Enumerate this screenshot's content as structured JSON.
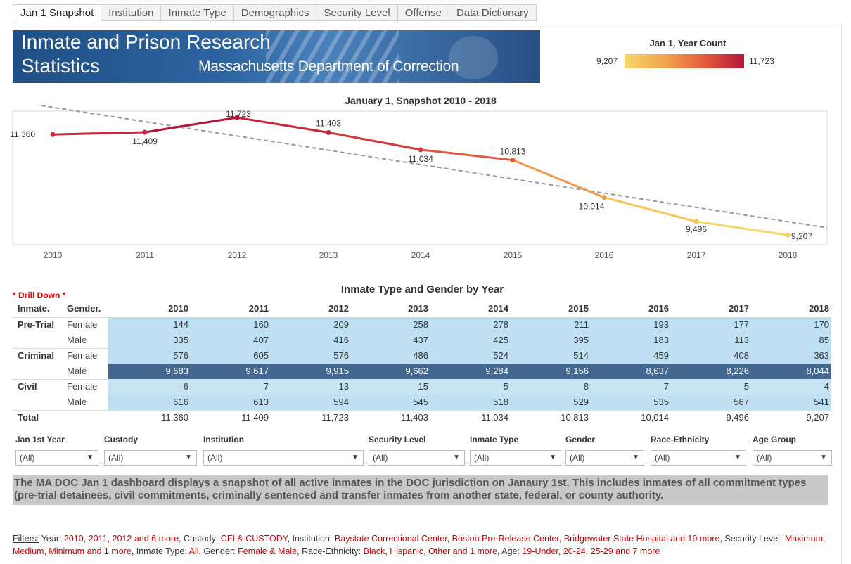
{
  "tabs": [
    "Jan 1 Snapshot",
    "Institution",
    "Inmate Type",
    "Demographics",
    "Security Level",
    "Offense",
    "Data Dictionary"
  ],
  "banner": {
    "line1": "Inmate and Prison Research",
    "line2": "Statistics",
    "subtitle": "Massachusetts Department of Correction"
  },
  "legend": {
    "title": "Jan 1, Year Count",
    "min": "9,207",
    "max": "11,723",
    "colors": [
      "#f7d66a",
      "#b3163a"
    ]
  },
  "chart_data": {
    "type": "line",
    "title": "January 1, Snapshot 2010 - 2018",
    "x": [
      2010,
      2011,
      2012,
      2013,
      2014,
      2015,
      2016,
      2017,
      2018
    ],
    "values": [
      11360,
      11409,
      11723,
      11403,
      11034,
      10813,
      10014,
      9496,
      9207
    ],
    "labels": [
      "11,360",
      "11,409",
      "11,723",
      "11,403",
      "11,034",
      "10,813",
      "10,014",
      "9,496",
      "9,207"
    ],
    "trend": {
      "style": "dashed",
      "color": "#999999"
    },
    "colors": [
      "#c8283e",
      "#c8283e",
      "#b3163a",
      "#c8283e",
      "#d4393f",
      "#df5840",
      "#ef9a4d",
      "#f6c35c",
      "#f7d66a"
    ]
  },
  "table": {
    "title": "Inmate Type and Gender by Year",
    "drill": "* Drill Down *",
    "col_inmate": "Inmate.",
    "col_gender": "Gender.",
    "years": [
      "2010",
      "2011",
      "2012",
      "2013",
      "2014",
      "2015",
      "2016",
      "2017",
      "2018"
    ],
    "rows": [
      {
        "type": "Pre-Trial",
        "gender": "Female",
        "values": [
          "144",
          "160",
          "209",
          "258",
          "278",
          "211",
          "193",
          "177",
          "170"
        ],
        "shade": "#bfe0f2"
      },
      {
        "type": "",
        "gender": "Male",
        "values": [
          "335",
          "407",
          "416",
          "437",
          "425",
          "395",
          "183",
          "113",
          "85"
        ],
        "shade": "#bfe0f2"
      },
      {
        "type": "Criminal",
        "gender": "Female",
        "values": [
          "576",
          "605",
          "576",
          "486",
          "524",
          "514",
          "459",
          "408",
          "363"
        ],
        "shade": "#bfe0f2"
      },
      {
        "type": "",
        "gender": "Male",
        "values": [
          "9,683",
          "9,617",
          "9,915",
          "9,662",
          "9,284",
          "9,156",
          "8,637",
          "8,226",
          "8,044"
        ],
        "shade": "#44678f"
      },
      {
        "type": "Civil",
        "gender": "Female",
        "values": [
          "6",
          "7",
          "13",
          "15",
          "5",
          "8",
          "7",
          "5",
          "4"
        ],
        "shade": "#c6e4f4"
      },
      {
        "type": "",
        "gender": "Male",
        "values": [
          "616",
          "613",
          "594",
          "545",
          "518",
          "529",
          "535",
          "567",
          "541"
        ],
        "shade": "#bfe0f2"
      }
    ],
    "total_label": "Total",
    "totals": [
      "11,360",
      "11,409",
      "11,723",
      "11,403",
      "11,034",
      "10,813",
      "10,014",
      "9,496",
      "9,207"
    ]
  },
  "filters": [
    {
      "label": "Jan 1st Year",
      "value": "(All)"
    },
    {
      "label": "Custody",
      "value": "(All)"
    },
    {
      "label": "Institution",
      "value": "(All)"
    },
    {
      "label": "Security Level",
      "value": "(All)"
    },
    {
      "label": "Inmate Type",
      "value": "(All)"
    },
    {
      "label": "Gender",
      "value": "(All)"
    },
    {
      "label": "Race-Ethnicity",
      "value": "(All)"
    },
    {
      "label": "Age Group",
      "value": "(All)"
    }
  ],
  "note": "The MA DOC Jan 1 dashboard displays a snapshot of all active inmates in the DOC jurisdiction on Janaury 1st. This includes inmates of all commitment types (pre-trial detainees, civil commitments, criminally sentenced and transfer inmates from another state, federal, or county authority.",
  "filterline": {
    "lead": "Filters:",
    "segments": [
      {
        "k": " Year: ",
        "v": "2010, 2011, 2012 and 6 more"
      },
      {
        "k": ", Custody: ",
        "v": "CFI & CUSTODY"
      },
      {
        "k": ", Institution: ",
        "v": "Baystate Correctional Center, Boston Pre-Release Center, Bridgewater State Hospital and 19 more"
      },
      {
        "k": ", Security Level: ",
        "v": "Maximum, Medium, Minimum and 1 more"
      },
      {
        "k": ",  Inmate Type: ",
        "v": "All"
      },
      {
        "k": ", Gender: ",
        "v": "Female & Male"
      },
      {
        "k": ", Race-Ethnicity: ",
        "v": "Black, Hispanic, Other and 1 more"
      },
      {
        "k": ", Age: ",
        "v": "19-Under, 20-24, 25-29 and 7 more"
      }
    ]
  }
}
